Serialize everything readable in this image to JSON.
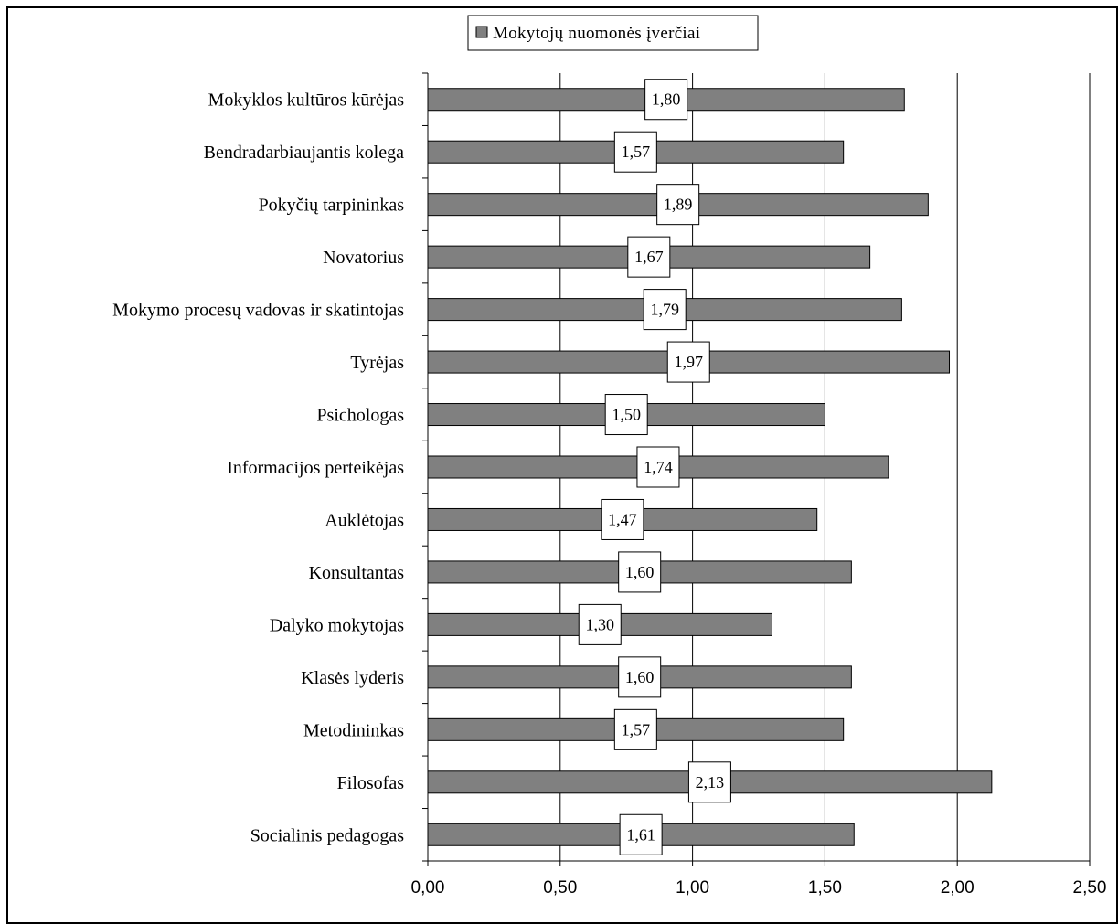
{
  "chart_data": {
    "type": "bar",
    "orientation": "horizontal",
    "categories": [
      "Mokyklos kultūros kūrėjas",
      "Bendradarbiaujantis kolega",
      "Pokyčių tarpininkas",
      "Novatorius",
      "Mokymo procesų vadovas ir skatintojas",
      "Tyrėjas",
      "Psichologas",
      "Informacijos perteikėjas",
      "Auklėtojas",
      "Konsultantas",
      "Dalyko mokytojas",
      "Klasės lyderis",
      "Metodininkas",
      "Filosofas",
      "Socialinis pedagogas"
    ],
    "series": [
      {
        "name": "Mokytojų nuomonės įverčiai",
        "values": [
          1.8,
          1.57,
          1.89,
          1.67,
          1.79,
          1.97,
          1.5,
          1.74,
          1.47,
          1.6,
          1.3,
          1.6,
          1.57,
          2.13,
          1.61
        ],
        "data_labels": [
          "1,80",
          "1,57",
          "1,89",
          "1,67",
          "1,79",
          "1,97",
          "1,50",
          "1,74",
          "1,47",
          "1,60",
          "1,30",
          "1,60",
          "1,57",
          "2,13",
          "1,61"
        ]
      }
    ],
    "xlim": [
      0,
      2.5
    ],
    "xticks": [
      0,
      0.5,
      1.0,
      1.5,
      2.0,
      2.5
    ],
    "xtick_labels": [
      "0,00",
      "0,50",
      "1,00",
      "1,50",
      "2,00",
      "2,50"
    ],
    "xlabel": "",
    "ylabel": "",
    "title": "",
    "grid": "vertical",
    "legend_position": "top",
    "colors": {
      "bar": "#808080",
      "bar_stroke": "#000000",
      "grid": "#000000",
      "background": "#ffffff"
    }
  }
}
